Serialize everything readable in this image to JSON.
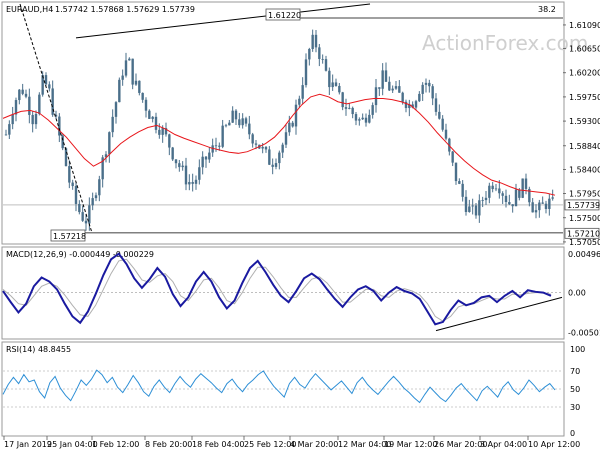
{
  "header": {
    "symbol_text": "EURAUD,H4",
    "ohlc_text": "1.57742 1.57868 1.57629 1.57739"
  },
  "watermark": "ActionForex.com",
  "colors": {
    "candle": "#4a6f8a",
    "ma": "#e8161b",
    "macd_main": "#1a1aa0",
    "macd_signal": "#b0b0b0",
    "rsi": "#2d8fd6",
    "level": "#000000",
    "grid": "#888888"
  },
  "chart_data": [
    {
      "type": "candlestick",
      "name": "price",
      "title": "EURAUD,H4",
      "ylim": [
        1.5703,
        1.6148
      ],
      "y_ticks": [
        "1.61090",
        "1.60650",
        "1.60200",
        "1.59750",
        "1.59300",
        "1.58840",
        "1.58400",
        "1.57950",
        "1.57500",
        "1.57050"
      ],
      "current_price_label": "1.57739",
      "current_price": 1.57739,
      "top_right_label": "38.2",
      "levels": [
        {
          "label": "1.61220",
          "value": 1.6122
        },
        {
          "label": "1.57218",
          "value": 1.57218
        },
        {
          "label": "1.57210",
          "value": 1.5721
        }
      ],
      "trendline_top": {
        "from": {
          "x": "28 Jan 2019",
          "y": 1.6085
        },
        "to": {
          "x": "5 Mar 2019",
          "y": 1.6148
        }
      },
      "trendline_left": {
        "from": {
          "x": "18 Jan 2019",
          "y": 1.6148
        },
        "to": {
          "x": "31 Jan 2019",
          "y": 1.5722
        }
      },
      "close_path": [
        1.5905,
        1.5948,
        1.5975,
        1.5992,
        1.5968,
        1.5935,
        1.5962,
        1.6005,
        1.599,
        1.5945,
        1.5902,
        1.5862,
        1.5815,
        1.578,
        1.5758,
        1.5745,
        1.5765,
        1.5808,
        1.5846,
        1.589,
        1.5935,
        1.5978,
        1.6026,
        1.6046,
        1.6005,
        1.5985,
        1.5965,
        1.5945,
        1.5928,
        1.5918,
        1.5902,
        1.588,
        1.5858,
        1.584,
        1.5822,
        1.5812,
        1.5826,
        1.5848,
        1.5866,
        1.5878,
        1.5892,
        1.591,
        1.5925,
        1.594,
        1.593,
        1.5918,
        1.5906,
        1.5895,
        1.588,
        1.5865,
        1.5852,
        1.5868,
        1.5884,
        1.5902,
        1.5932,
        1.5966,
        1.6012,
        1.6058,
        1.6082,
        1.6058,
        1.6028,
        1.6002,
        1.5988,
        1.5968,
        1.5958,
        1.5948,
        1.5936,
        1.5928,
        1.5945,
        1.597,
        1.5995,
        1.601,
        1.5995,
        1.5985,
        1.5978,
        1.5972,
        1.596,
        1.5972,
        1.5995,
        1.6005,
        1.5985,
        1.5955,
        1.5925,
        1.5885,
        1.585,
        1.5818,
        1.579,
        1.5768,
        1.5758,
        1.5766,
        1.579,
        1.5806,
        1.582,
        1.581,
        1.579,
        1.5776,
        1.579,
        1.5806,
        1.5812,
        1.5776,
        1.576,
        1.577,
        1.578,
        1.5774
      ],
      "ma_path": [
        1.5935,
        1.5942,
        1.5948,
        1.595,
        1.5945,
        1.5932,
        1.5916,
        1.59,
        1.588,
        1.586,
        1.5846,
        1.5855,
        1.5872,
        1.5888,
        1.59,
        1.591,
        1.5918,
        1.5922,
        1.5915,
        1.5905,
        1.5898,
        1.5892,
        1.5886,
        1.588,
        1.5876,
        1.5872,
        1.587,
        1.5873,
        1.588,
        1.5888,
        1.59,
        1.5918,
        1.594,
        1.596,
        1.5975,
        1.598,
        1.5975,
        1.5966,
        1.5962,
        1.5966,
        1.597,
        1.5972,
        1.5972,
        1.597,
        1.5966,
        1.596,
        1.5945,
        1.5928,
        1.5908,
        1.589,
        1.5872,
        1.5856,
        1.5842,
        1.583,
        1.582,
        1.5815,
        1.5808,
        1.5802,
        1.58,
        1.5798,
        1.5796,
        1.5792
      ]
    },
    {
      "type": "line",
      "name": "macd",
      "title": "MACD(12,26,9) -0.000449 -0.000229",
      "ylim": [
        -0.0056,
        0.0055
      ],
      "y_ticks": [
        "0.004965",
        "0.00",
        "-0.005013"
      ],
      "main": [
        0.0002,
        -0.0012,
        -0.0025,
        -0.0014,
        0.0008,
        0.0019,
        0.0014,
        0.0004,
        -0.0014,
        -0.003,
        -0.0038,
        -0.0024,
        -0.0002,
        0.0022,
        0.0042,
        0.0049,
        0.0036,
        0.0018,
        0.0006,
        0.0017,
        0.0031,
        0.002,
        -0.0002,
        -0.0017,
        -0.0006,
        0.0014,
        0.0026,
        0.0014,
        -0.0006,
        -0.002,
        -0.001,
        0.0012,
        0.0031,
        0.004,
        0.0026,
        0.001,
        -0.0004,
        -0.0012,
        0.0002,
        0.0018,
        0.0024,
        0.0017,
        0.0004,
        -0.0008,
        -0.0018,
        -0.0006,
        0.0004,
        0.0008,
        0.0002,
        -0.001,
        0.0,
        0.0007,
        0.0002,
        -0.0001,
        -0.0008,
        -0.0024,
        -0.004,
        -0.0037,
        -0.0022,
        -0.001,
        -0.0016,
        -0.0013,
        -0.0006,
        -0.0004,
        -0.0012,
        -0.0004,
        0.0002,
        -0.0006,
        0.0003,
        0.0001,
        0.0,
        -0.0004
      ],
      "signal": [
        0.0004,
        -0.0004,
        -0.0014,
        -0.0016,
        -0.0004,
        0.0008,
        0.0012,
        0.0008,
        -0.0003,
        -0.0016,
        -0.0028,
        -0.003,
        -0.0016,
        0.0004,
        0.0024,
        0.004,
        0.0042,
        0.003,
        0.0016,
        0.0013,
        0.0021,
        0.0024,
        0.0014,
        -0.0004,
        -0.001,
        0.0002,
        0.0016,
        0.0018,
        0.0006,
        -0.001,
        -0.0014,
        0.0,
        0.0018,
        0.0032,
        0.0032,
        0.002,
        0.0006,
        -0.0006,
        -0.0006,
        0.0006,
        0.0017,
        0.002,
        0.0012,
        0.0,
        -0.0012,
        -0.0012,
        -0.0004,
        0.0004,
        0.0004,
        -0.0004,
        -0.0006,
        0.0002,
        0.0005,
        0.0002,
        -0.0003,
        -0.0014,
        -0.003,
        -0.0036,
        -0.003,
        -0.0018,
        -0.0015,
        -0.0014,
        -0.001,
        -0.0006,
        -0.0008,
        -0.0008,
        -0.0002,
        -0.0003,
        -0.0001,
        0.0,
        0.0,
        -0.0002
      ],
      "trendline": {
        "from": {
          "x": "26 Mar 2019",
          "y": -0.0048
        },
        "to": {
          "x": "11 Apr 2019",
          "y": -0.0006
        }
      }
    },
    {
      "type": "line",
      "name": "rsi",
      "title": "RSI(14) 48.8455",
      "ylim": [
        0,
        100
      ],
      "y_ticks": [
        "100",
        "70",
        "50",
        "30",
        "0"
      ],
      "levels": [
        70,
        50,
        30
      ],
      "values": [
        44,
        55,
        63,
        56,
        66,
        58,
        60,
        47,
        40,
        57,
        64,
        51,
        43,
        37,
        48,
        60,
        54,
        61,
        71,
        66,
        57,
        63,
        52,
        46,
        55,
        65,
        57,
        47,
        42,
        53,
        60,
        52,
        46,
        56,
        64,
        57,
        52,
        61,
        67,
        62,
        57,
        51,
        46,
        56,
        61,
        53,
        47,
        55,
        60,
        66,
        70,
        61,
        53,
        47,
        41,
        56,
        63,
        55,
        51,
        60,
        67,
        61,
        55,
        49,
        54,
        59,
        52,
        45,
        57,
        63,
        55,
        49,
        44,
        51,
        58,
        64,
        58,
        51,
        46,
        40,
        35,
        44,
        52,
        46,
        40,
        36,
        43,
        51,
        56,
        49,
        43,
        37,
        48,
        53,
        47,
        41,
        52,
        58,
        49,
        44,
        51,
        60,
        54,
        47,
        52,
        56,
        49
      ]
    }
  ],
  "x_axis": {
    "labels": [
      "17 Jan 2019",
      "25 Jan 04:00",
      "1 Feb 12:00",
      "8 Feb 20:00",
      "18 Feb 04:00",
      "25 Feb 12:00",
      "4 Mar 20:00",
      "12 Mar 04:00",
      "19 Mar 12:00",
      "26 Mar 20:00",
      "3 Apr 04:00",
      "10 Apr 12:00"
    ]
  }
}
